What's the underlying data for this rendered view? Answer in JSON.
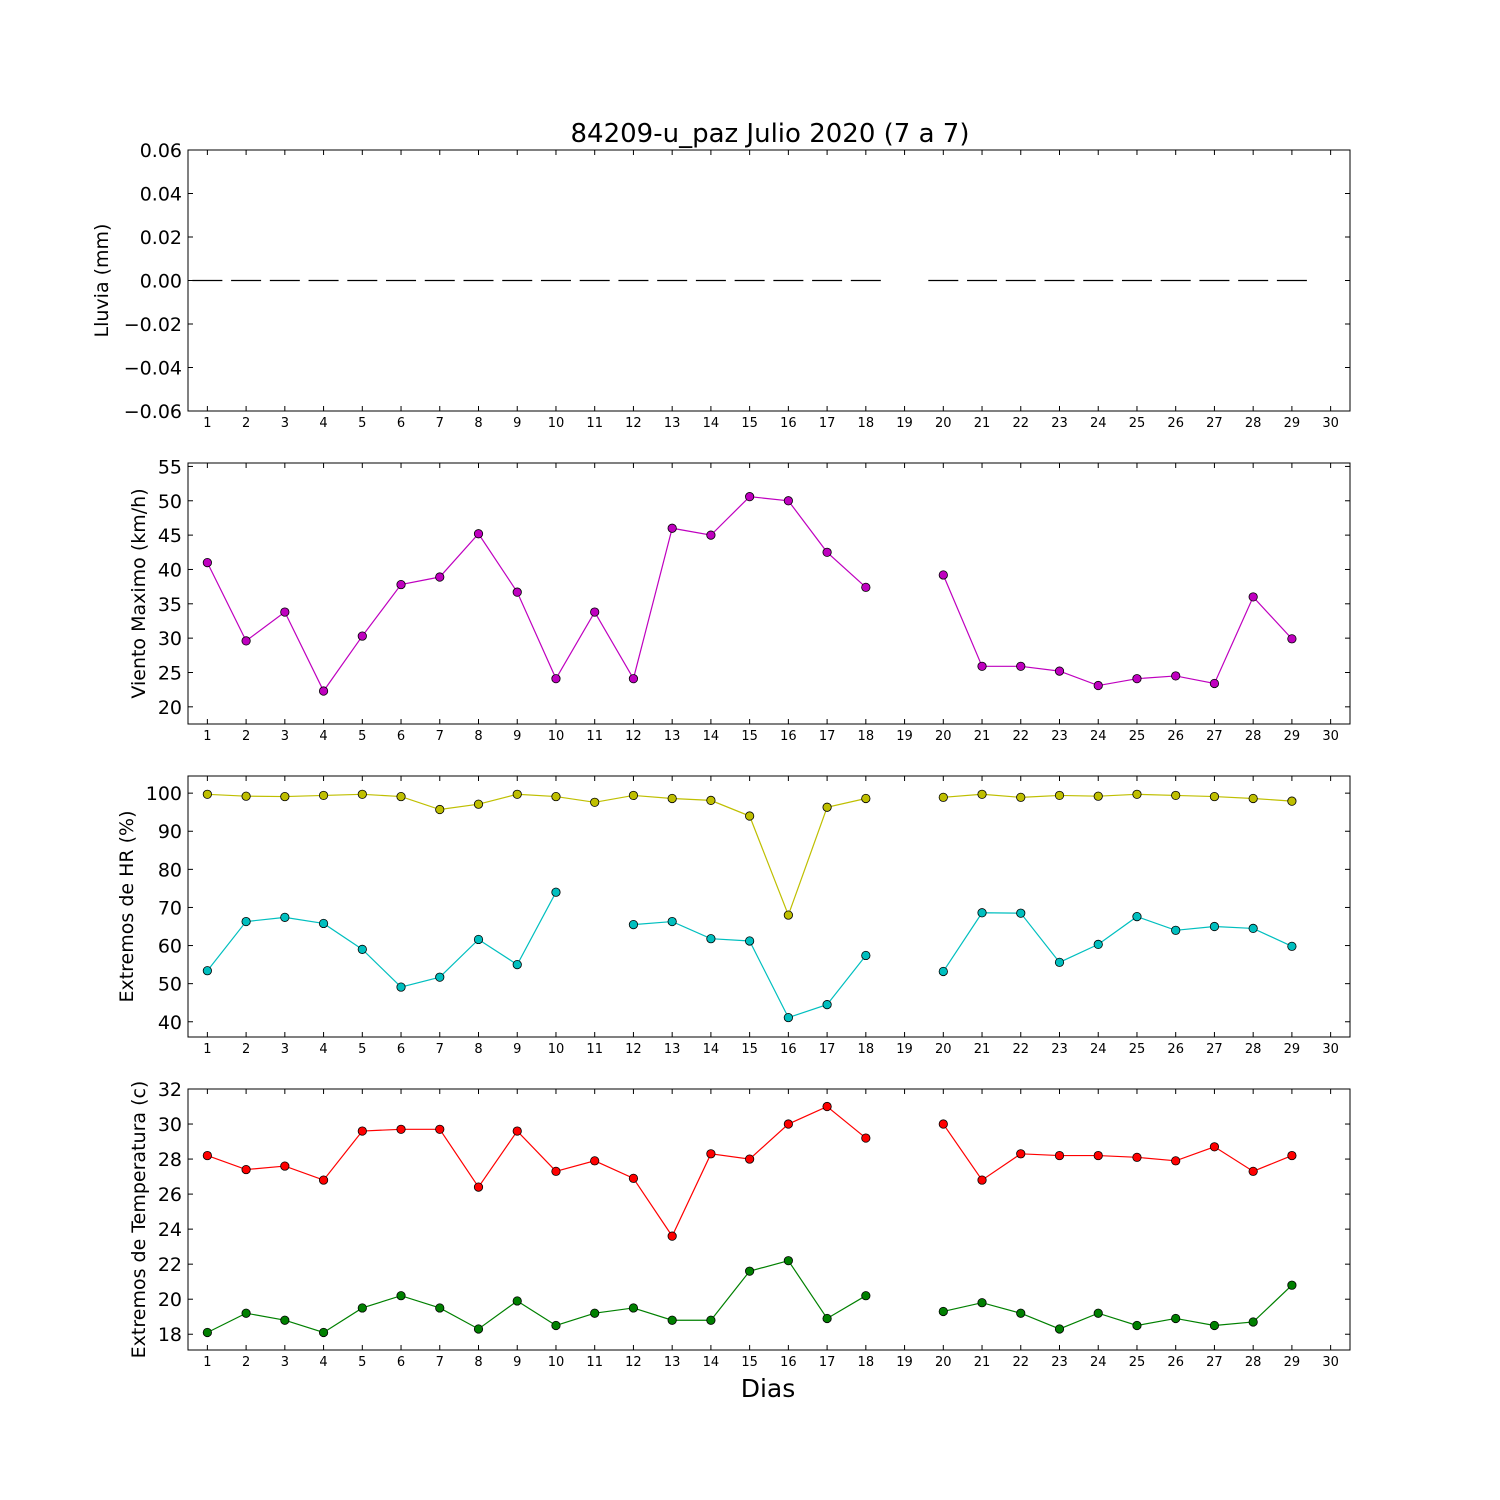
{
  "chart_data": {
    "title": "84209-u_paz Julio 2020  (7 a 7)",
    "xlabel": "Dias",
    "x_ticks": [
      "1",
      "2",
      "3",
      "4",
      "5",
      "6",
      "7",
      "8",
      "9",
      "10",
      "11",
      "12",
      "13",
      "14",
      "15",
      "16",
      "17",
      "18",
      "19",
      "20",
      "21",
      "22",
      "23",
      "24",
      "25",
      "26",
      "27",
      "28",
      "29",
      "30"
    ],
    "subplots": [
      {
        "type": "line",
        "ylabel": "Lluvia (mm)",
        "ylim": [
          -0.06,
          0.06
        ],
        "yticks": [
          -0.06,
          -0.04,
          -0.02,
          0.0,
          0.02,
          0.04,
          0.06
        ],
        "ytick_labels": [
          "−0.06",
          "−0.04",
          "−0.02",
          "0.00",
          "0.02",
          "0.04",
          "0.06"
        ],
        "series": [
          {
            "color": "#000000",
            "style": "bar-dash",
            "x": [
              1,
              2,
              3,
              4,
              5,
              6,
              7,
              8,
              9,
              10,
              11,
              12,
              13,
              14,
              15,
              16,
              17,
              18,
              19,
              20,
              21,
              22,
              23,
              24,
              25,
              26,
              27,
              28,
              29
            ],
            "values": [
              0,
              0,
              0,
              0,
              0,
              0,
              0,
              0,
              0,
              0,
              0,
              0,
              0,
              0,
              0,
              0,
              0,
              0,
              null,
              0,
              0,
              0,
              0,
              0,
              0,
              0,
              0,
              0,
              0
            ]
          }
        ]
      },
      {
        "type": "line",
        "ylabel": "Viento Maximo (km/h)",
        "ylim": [
          17.5,
          55.5
        ],
        "yticks": [
          20,
          25,
          30,
          35,
          40,
          45,
          50,
          55
        ],
        "ytick_labels": [
          "20",
          "25",
          "30",
          "35",
          "40",
          "45",
          "50",
          "55"
        ],
        "series": [
          {
            "color": "#bf00bf",
            "x": [
              1,
              2,
              3,
              4,
              5,
              6,
              7,
              8,
              9,
              10,
              11,
              12,
              13,
              14,
              15,
              16,
              17,
              18,
              19,
              20,
              21,
              22,
              23,
              24,
              25,
              26,
              27,
              28,
              29
            ],
            "values": [
              41,
              29.6,
              33.8,
              22.3,
              30.3,
              37.8,
              38.9,
              45.2,
              36.7,
              24.1,
              33.8,
              24.1,
              46,
              45,
              50.6,
              50,
              42.5,
              37.4,
              null,
              39.2,
              25.9,
              25.9,
              25.2,
              23.1,
              24.1,
              24.5,
              23.4,
              36,
              29.9
            ]
          }
        ]
      },
      {
        "type": "line",
        "ylabel": "Extremos de HR (%)",
        "ylim": [
          36,
          104.5
        ],
        "yticks": [
          40,
          50,
          60,
          70,
          80,
          90,
          100
        ],
        "ytick_labels": [
          "40",
          "50",
          "60",
          "70",
          "80",
          "90",
          "100"
        ],
        "series": [
          {
            "color": "#bfbf00",
            "x": [
              1,
              2,
              3,
              4,
              5,
              6,
              7,
              8,
              9,
              10,
              11,
              12,
              13,
              14,
              15,
              16,
              17,
              18,
              19,
              20,
              21,
              22,
              23,
              24,
              25,
              26,
              27,
              28,
              29
            ],
            "values": [
              99.7,
              99.2,
              99.1,
              99.4,
              99.7,
              99.1,
              95.7,
              97.1,
              99.7,
              99.1,
              97.6,
              99.4,
              98.6,
              98.1,
              94,
              68,
              96.3,
              98.6,
              null,
              98.9,
              99.7,
              98.9,
              99.4,
              99.2,
              99.7,
              99.4,
              99.1,
              98.6,
              97.9
            ]
          },
          {
            "color": "#00bfbf",
            "x": [
              1,
              2,
              3,
              4,
              5,
              6,
              7,
              8,
              9,
              10,
              11,
              12,
              13,
              14,
              15,
              16,
              17,
              18,
              19,
              20,
              21,
              22,
              23,
              24,
              25,
              26,
              27,
              28,
              29
            ],
            "values": [
              53.4,
              66.3,
              67.4,
              65.8,
              59,
              49.1,
              51.7,
              61.6,
              55,
              74,
              null,
              65.5,
              66.3,
              61.8,
              61.2,
              41.1,
              44.5,
              57.4,
              null,
              53.2,
              68.6,
              68.5,
              55.6,
              60.3,
              67.6,
              64,
              65,
              64.5,
              59.8
            ]
          }
        ]
      },
      {
        "type": "line",
        "ylabel": "Extremos de Temperatura (c)",
        "ylim": [
          17.1,
          32
        ],
        "yticks": [
          18,
          20,
          22,
          24,
          26,
          28,
          30,
          32
        ],
        "ytick_labels": [
          "18",
          "20",
          "22",
          "24",
          "26",
          "28",
          "30",
          "32"
        ],
        "series": [
          {
            "color": "#ff0000",
            "x": [
              1,
              2,
              3,
              4,
              5,
              6,
              7,
              8,
              9,
              10,
              11,
              12,
              13,
              14,
              15,
              16,
              17,
              18,
              19,
              20,
              21,
              22,
              23,
              24,
              25,
              26,
              27,
              28,
              29
            ],
            "values": [
              28.2,
              27.4,
              27.6,
              26.8,
              29.6,
              29.7,
              29.7,
              26.4,
              29.6,
              27.3,
              27.9,
              26.9,
              23.6,
              28.3,
              28,
              30,
              31,
              29.2,
              null,
              30,
              26.8,
              28.3,
              28.2,
              28.2,
              28.1,
              27.9,
              28.7,
              27.3,
              28.2
            ]
          },
          {
            "color": "#008000",
            "x": [
              1,
              2,
              3,
              4,
              5,
              6,
              7,
              8,
              9,
              10,
              11,
              12,
              13,
              14,
              15,
              16,
              17,
              18,
              19,
              20,
              21,
              22,
              23,
              24,
              25,
              26,
              27,
              28,
              29
            ],
            "values": [
              18.1,
              19.2,
              18.8,
              18.1,
              19.5,
              20.2,
              19.5,
              18.3,
              19.9,
              18.5,
              19.2,
              19.5,
              18.8,
              18.8,
              21.6,
              22.2,
              18.9,
              20.2,
              null,
              19.3,
              19.8,
              19.2,
              18.3,
              19.2,
              18.5,
              18.9,
              18.5,
              18.7,
              20.8
            ]
          }
        ]
      }
    ],
    "xlim": [
      0.5,
      30.5
    ],
    "grid": false,
    "legend": "none"
  }
}
